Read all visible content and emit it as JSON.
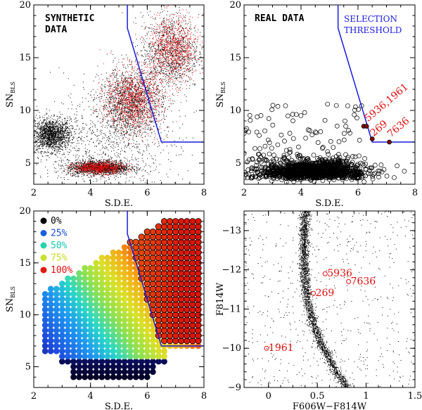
{
  "colors": {
    "threshold": "#1a1adc",
    "highlight": "#e01010",
    "synthetic_black": "#000000",
    "synthetic_red": "#e01010"
  },
  "chart_data": [
    {
      "id": "p1",
      "type": "scatter",
      "title": "SYNTHETIC DATA",
      "xlabel": "S.D.E.",
      "ylabel": "SN",
      "ylabel_sub": "BLS",
      "xlim": [
        2,
        8
      ],
      "ylim": [
        3,
        20
      ],
      "xticks": [
        2,
        4,
        6,
        8
      ],
      "yticks": [
        5,
        10,
        15,
        20
      ],
      "threshold": {
        "x": [
          5.3,
          5.3,
          6.5,
          8.0
        ],
        "y": [
          20,
          17.8,
          7.0,
          7.0
        ]
      },
      "clusters": [
        {
          "cx": 2.6,
          "cy": 7.7,
          "sx": 0.35,
          "sy": 0.75,
          "n": 1600,
          "color": "black"
        },
        {
          "cx": 4.3,
          "cy": 4.6,
          "sx": 0.55,
          "sy": 0.35,
          "n": 1500,
          "color": "black"
        },
        {
          "cx": 4.3,
          "cy": 4.6,
          "sx": 0.45,
          "sy": 0.28,
          "n": 900,
          "color": "red"
        },
        {
          "cx": 5.4,
          "cy": 10.8,
          "sx": 0.55,
          "sy": 1.6,
          "n": 1500,
          "color": "black"
        },
        {
          "cx": 5.5,
          "cy": 11.0,
          "sx": 0.5,
          "sy": 1.5,
          "n": 1200,
          "color": "red"
        },
        {
          "cx": 6.8,
          "cy": 15.5,
          "sx": 0.5,
          "sy": 1.8,
          "n": 1100,
          "color": "black"
        },
        {
          "cx": 6.9,
          "cy": 15.8,
          "sx": 0.45,
          "sy": 1.6,
          "n": 1000,
          "color": "red"
        },
        {
          "cx": 4.5,
          "cy": 6.5,
          "sx": 1.3,
          "sy": 2.5,
          "n": 900,
          "color": "black"
        }
      ]
    },
    {
      "id": "p2",
      "type": "scatter",
      "title": "REAL DATA",
      "xlabel": "S.D.E.",
      "ylabel": "SN",
      "ylabel_sub": "BLS",
      "xlim": [
        2,
        8
      ],
      "ylim": [
        3,
        20
      ],
      "xticks": [
        2,
        4,
        6,
        8
      ],
      "yticks": [
        5,
        10,
        15,
        20
      ],
      "threshold_label": [
        "SELECTION",
        "THRESHOLD"
      ],
      "threshold": {
        "x": [
          5.3,
          5.3,
          6.5,
          8.0
        ],
        "y": [
          20,
          17.8,
          7.0,
          7.0
        ]
      },
      "cloud": {
        "cx": 4.4,
        "cy": 4.2,
        "sx": 0.9,
        "sy": 0.55,
        "n": 1100
      },
      "scatter": {
        "xmin": 2.0,
        "xmax": 6.3,
        "ymin": 3.6,
        "ymax": 10.6,
        "n": 220
      },
      "highlights": [
        {
          "x": 6.2,
          "y": 8.5
        },
        {
          "x": 6.3,
          "y": 8.5
        },
        {
          "x": 6.5,
          "y": 7.3
        },
        {
          "x": 7.1,
          "y": 7.0
        }
      ],
      "labels": [
        {
          "text": "5936,1961",
          "x": 6.35,
          "y": 8.9,
          "rotate": -40
        },
        {
          "text": "269",
          "x": 6.55,
          "y": 7.5,
          "rotate": -40
        },
        {
          "text": "7636",
          "x": 7.15,
          "y": 7.4,
          "rotate": -40
        }
      ]
    },
    {
      "id": "p3",
      "type": "heatmap",
      "title": "",
      "xlabel": "S.D.E.",
      "ylabel": "SN",
      "ylabel_sub": "BLS",
      "xlim": [
        2,
        8
      ],
      "ylim": [
        3,
        20
      ],
      "xticks": [
        2,
        4,
        6,
        8
      ],
      "yticks": [
        5,
        10,
        15,
        20
      ],
      "threshold": {
        "x": [
          5.3,
          5.3,
          6.5,
          8.0
        ],
        "y": [
          20,
          17.8,
          7.0,
          7.0
        ]
      },
      "legend": [
        {
          "label": "0%",
          "color": "#000000",
          "fill": "#000000"
        },
        {
          "label": "25%",
          "color": "#1a4fd0",
          "fill": "#1a5ee0"
        },
        {
          "label": "50%",
          "color": "#19c8b0",
          "fill": "#27d2b0"
        },
        {
          "label": "75%",
          "color": "#c6dc20",
          "fill": "#c8e030"
        },
        {
          "label": "100%",
          "color": "#e01010",
          "fill": "#e01a10"
        }
      ],
      "grid": {
        "xmin": 2.2,
        "xmax": 7.8,
        "dx": 0.2,
        "ymin": 4.0,
        "ymax": 19.0,
        "dy": 0.5
      }
    },
    {
      "id": "p4",
      "type": "scatter",
      "title": "",
      "xlabel": "F606W−F814W",
      "ylabel": "F814W",
      "xlim": [
        -0.25,
        1.5
      ],
      "ylim": [
        -9,
        -13.5
      ],
      "xticks": [
        0,
        0.5,
        1,
        1.5
      ],
      "xtick_labels": [
        "0",
        "0.5",
        "1",
        "1.5"
      ],
      "yticks": [
        -13,
        -12,
        -11,
        -10,
        -9
      ],
      "ytick_labels": [
        "−13",
        "−12",
        "−11",
        "−10",
        "−9"
      ],
      "stars": [
        {
          "label": "5936",
          "x": 0.58,
          "y": -11.9
        },
        {
          "label": "7636",
          "x": 0.82,
          "y": -11.7
        },
        {
          "label": "269",
          "x": 0.46,
          "y": -11.4
        },
        {
          "label": "1961",
          "x": -0.02,
          "y": -10.0
        }
      ]
    }
  ]
}
